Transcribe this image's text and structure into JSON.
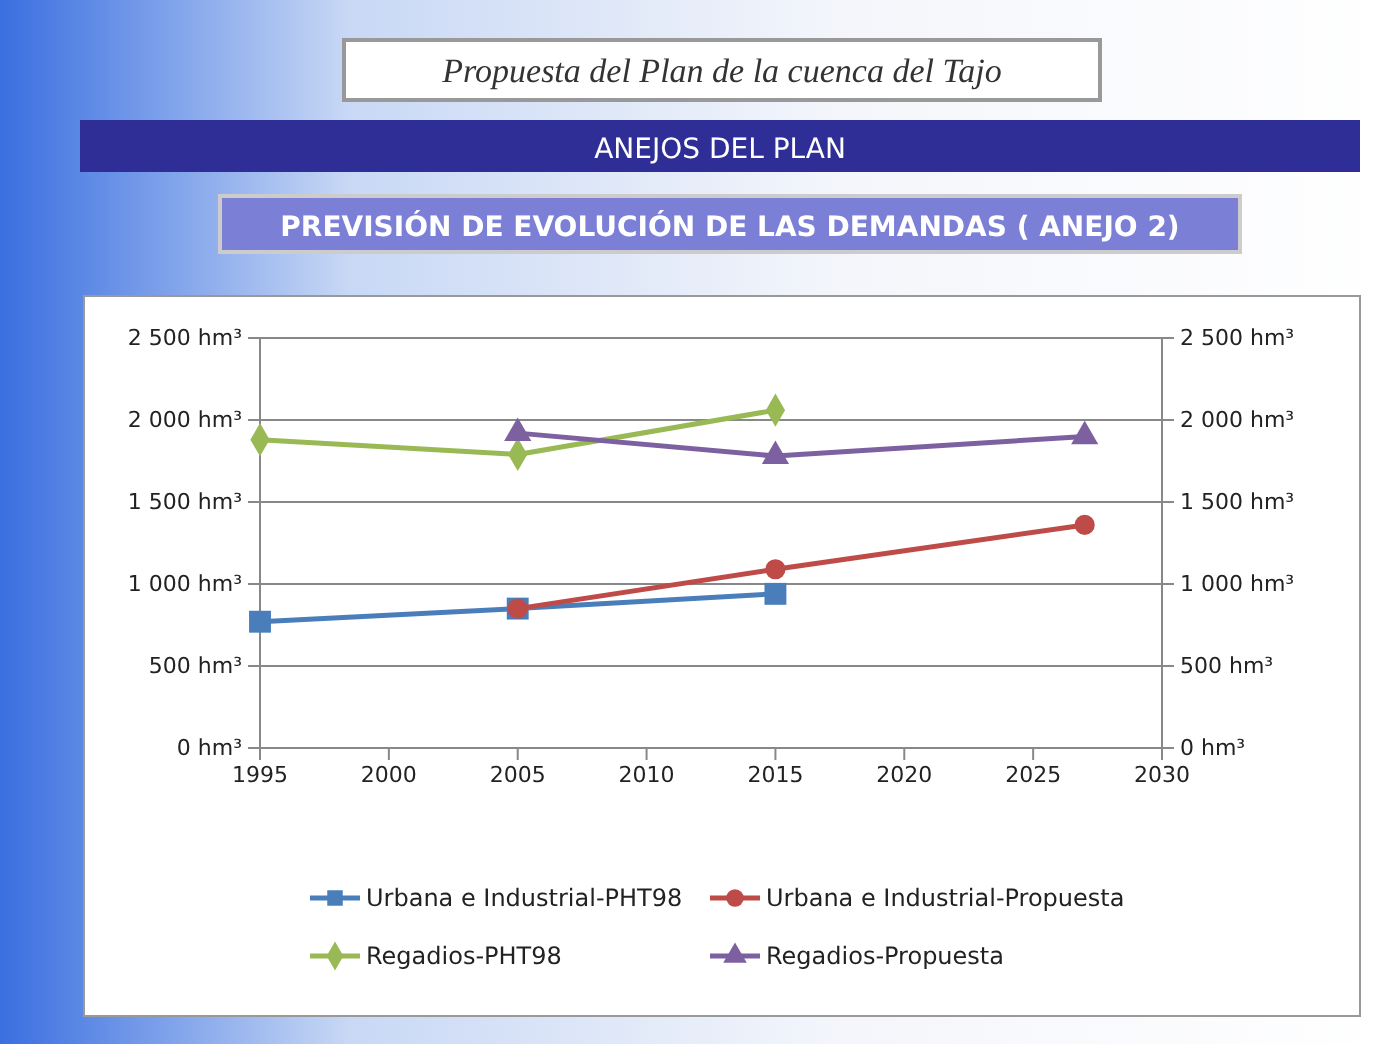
{
  "chart_data": {
    "type": "line",
    "title": "Propuesta del Plan de la cuenca del Tajo",
    "subtitle": "ANEJOS DEL PLAN",
    "annotations": [
      "PREVISIÓN DE EVOLUCIÓN DE LAS DEMANDAS ( ANEJO 2)"
    ],
    "xlim": [
      1995,
      2030
    ],
    "xticks": [
      1995,
      2000,
      2005,
      2010,
      2015,
      2020,
      2025,
      2030
    ],
    "ylim": [
      0,
      2500
    ],
    "yticks": [
      {
        "value": 0,
        "label": "0 hm³"
      },
      {
        "value": 500,
        "label": "500 hm³"
      },
      {
        "value": 1000,
        "label": "1 000 hm³"
      },
      {
        "value": 1500,
        "label": "1 500 hm³"
      },
      {
        "value": 2000,
        "label": "2 000 hm³"
      },
      {
        "value": 2500,
        "label": "2 500 hm³"
      }
    ],
    "y2lim": [
      0,
      2500
    ],
    "y2ticks": [
      {
        "value": 0,
        "label": "0 hm³"
      },
      {
        "value": 500,
        "label": "500 hm³"
      },
      {
        "value": 1000,
        "label": "1 000 hm³"
      },
      {
        "value": 1500,
        "label": "1 500 hm³"
      },
      {
        "value": 2000,
        "label": "2 000 hm³"
      },
      {
        "value": 2500,
        "label": "2 500 hm³"
      }
    ],
    "grid": "y",
    "legend": "bottom",
    "series": [
      {
        "name": "Urbana e Industrial-PHT98",
        "color": "#4a7ebb",
        "marker": "square",
        "x": [
          1995,
          2005,
          2015
        ],
        "values": [
          770,
          850,
          940
        ]
      },
      {
        "name": "Urbana e Industrial-Propuesta",
        "color": "#be4b48",
        "marker": "circle",
        "x": [
          2005,
          2015,
          2027
        ],
        "values": [
          850,
          1090,
          1360
        ]
      },
      {
        "name": "Regadios-PHT98",
        "color": "#98b954",
        "marker": "diamond",
        "x": [
          1995,
          2005,
          2015
        ],
        "values": [
          1880,
          1790,
          2060
        ]
      },
      {
        "name": "Regadios-Propuesta",
        "color": "#7d60a0",
        "marker": "triangle",
        "x": [
          2005,
          2015,
          2027
        ],
        "values": [
          1920,
          1780,
          1900
        ]
      }
    ]
  }
}
